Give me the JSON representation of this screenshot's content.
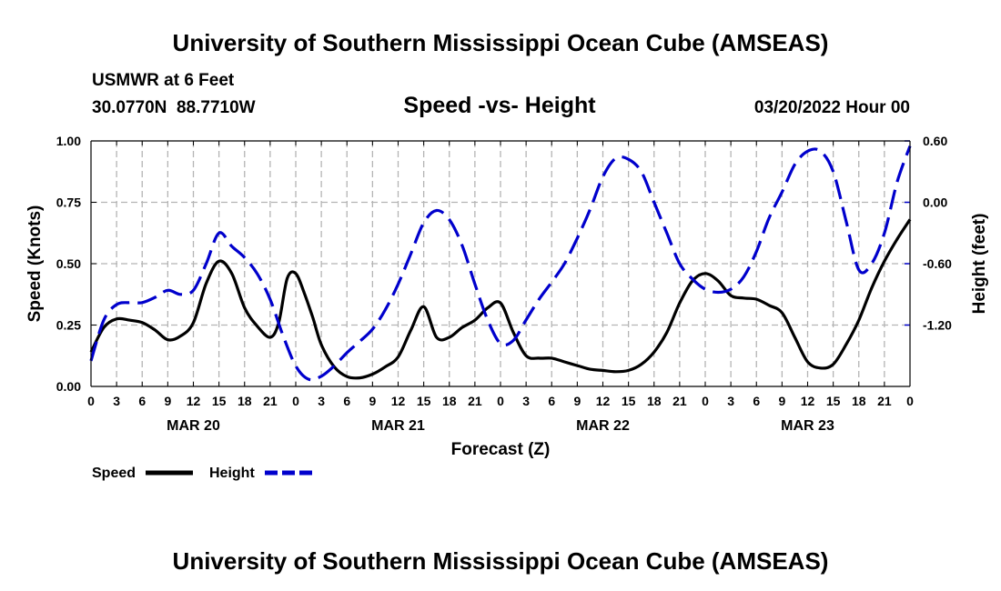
{
  "header": {
    "title": "University of Southern Mississippi Ocean Cube (AMSEAS)",
    "station": "USMWR at 6 Feet",
    "coords": "30.0770N  88.7710W",
    "datetime": "03/20/2022 Hour 00"
  },
  "footer": {
    "title": "University of Southern Mississippi Ocean Cube (AMSEAS)"
  },
  "chart_data": {
    "type": "line",
    "title": "Speed -vs- Height",
    "xlabel": "Forecast (Z)",
    "ylabel_left": "Speed (Knots)",
    "ylabel_right": "Height (feet)",
    "xlim": [
      0,
      96
    ],
    "ylim_left": [
      0,
      1.0
    ],
    "ylim_right": [
      -1.8,
      0.6
    ],
    "x_ticks": [
      0,
      3,
      6,
      9,
      12,
      15,
      18,
      21,
      24,
      27,
      30,
      33,
      36,
      39,
      42,
      45,
      48,
      51,
      54,
      57,
      60,
      63,
      66,
      69,
      72,
      75,
      78,
      81,
      84,
      87,
      90,
      93,
      96
    ],
    "x_tick_labels": [
      "0",
      "3",
      "6",
      "9",
      "12",
      "15",
      "18",
      "21",
      "0",
      "3",
      "6",
      "9",
      "12",
      "15",
      "18",
      "21",
      "0",
      "3",
      "6",
      "9",
      "12",
      "15",
      "18",
      "21",
      "0",
      "3",
      "6",
      "9",
      "12",
      "15",
      "18",
      "21",
      "0"
    ],
    "day_labels": [
      {
        "x": 12,
        "label": "MAR 20"
      },
      {
        "x": 36,
        "label": "MAR 21"
      },
      {
        "x": 60,
        "label": "MAR 22"
      },
      {
        "x": 84,
        "label": "MAR 23"
      }
    ],
    "y_left_ticks": [
      0.0,
      0.25,
      0.5,
      0.75,
      1.0
    ],
    "y_left_tick_labels": [
      "0.00",
      "0.25",
      "0.50",
      "0.75",
      "1.00"
    ],
    "y_right_ticks": [
      -1.2,
      -0.6,
      0.0,
      0.6
    ],
    "y_right_tick_labels": [
      "-1.20",
      "-0.60",
      "0.00",
      "0.60"
    ],
    "grid": true,
    "legend": {
      "placement": "bottom-left",
      "entries": [
        "Speed",
        "Height"
      ]
    },
    "series": [
      {
        "name": "Speed",
        "axis": "left",
        "color": "#000000",
        "style": "solid",
        "x": [
          0,
          1.5,
          3,
          4.5,
          6,
          7.5,
          9,
          10.5,
          12,
          13.5,
          15,
          16.5,
          18,
          19.5,
          21,
          22,
          23,
          24,
          25,
          26,
          27,
          28.5,
          30,
          31.5,
          33,
          34.5,
          36,
          37.5,
          39,
          40.5,
          42,
          43.5,
          45,
          46.5,
          48,
          49.5,
          51,
          52.5,
          54,
          55.5,
          57,
          58.5,
          60,
          61.5,
          63,
          64.5,
          66,
          67.5,
          69,
          70.5,
          72,
          73.5,
          75,
          76.5,
          78,
          79.5,
          81,
          82.5,
          84,
          85.5,
          87,
          88.5,
          90,
          91.5,
          93,
          94.5,
          96
        ],
        "values": [
          0.14,
          0.24,
          0.275,
          0.27,
          0.26,
          0.23,
          0.19,
          0.205,
          0.26,
          0.42,
          0.51,
          0.46,
          0.32,
          0.245,
          0.2,
          0.26,
          0.44,
          0.46,
          0.38,
          0.28,
          0.17,
          0.08,
          0.04,
          0.035,
          0.05,
          0.08,
          0.12,
          0.23,
          0.325,
          0.2,
          0.2,
          0.24,
          0.27,
          0.32,
          0.34,
          0.22,
          0.125,
          0.115,
          0.115,
          0.1,
          0.085,
          0.07,
          0.065,
          0.06,
          0.065,
          0.09,
          0.14,
          0.22,
          0.34,
          0.43,
          0.46,
          0.43,
          0.37,
          0.36,
          0.355,
          0.33,
          0.3,
          0.2,
          0.1,
          0.075,
          0.09,
          0.17,
          0.27,
          0.4,
          0.51,
          0.6,
          0.68
        ]
      },
      {
        "name": "Height",
        "axis": "right",
        "color": "#0000cc",
        "style": "dashed",
        "x": [
          0,
          1.5,
          3,
          4.5,
          6,
          7.5,
          9,
          10.5,
          12,
          13.5,
          15,
          16.5,
          18,
          19.5,
          21,
          22.5,
          24,
          25.5,
          27,
          28.5,
          30,
          31.5,
          33,
          34.5,
          36,
          37.5,
          39,
          40.5,
          42,
          43.5,
          45,
          46.5,
          48,
          49.5,
          51,
          52.5,
          54,
          55.5,
          57,
          58.5,
          60,
          61.5,
          63,
          64.5,
          66,
          67.5,
          69,
          70.5,
          72,
          73.5,
          75,
          76.5,
          78,
          79.5,
          81,
          82.5,
          84,
          85.5,
          87,
          88.5,
          90,
          91.5,
          93,
          94.5,
          96
        ],
        "values": [
          -1.55,
          -1.15,
          -1.0,
          -0.98,
          -0.98,
          -0.93,
          -0.86,
          -0.9,
          -0.86,
          -0.6,
          -0.3,
          -0.43,
          -0.54,
          -0.7,
          -0.95,
          -1.3,
          -1.6,
          -1.73,
          -1.7,
          -1.6,
          -1.47,
          -1.36,
          -1.24,
          -1.05,
          -0.8,
          -0.5,
          -0.2,
          -0.08,
          -0.17,
          -0.42,
          -0.8,
          -1.15,
          -1.38,
          -1.35,
          -1.15,
          -0.95,
          -0.78,
          -0.6,
          -0.35,
          -0.07,
          0.25,
          0.43,
          0.42,
          0.3,
          0.0,
          -0.3,
          -0.6,
          -0.75,
          -0.85,
          -0.88,
          -0.85,
          -0.73,
          -0.48,
          -0.15,
          0.1,
          0.37,
          0.5,
          0.5,
          0.3,
          -0.18,
          -0.66,
          -0.6,
          -0.3,
          0.2,
          0.55
        ]
      }
    ]
  }
}
